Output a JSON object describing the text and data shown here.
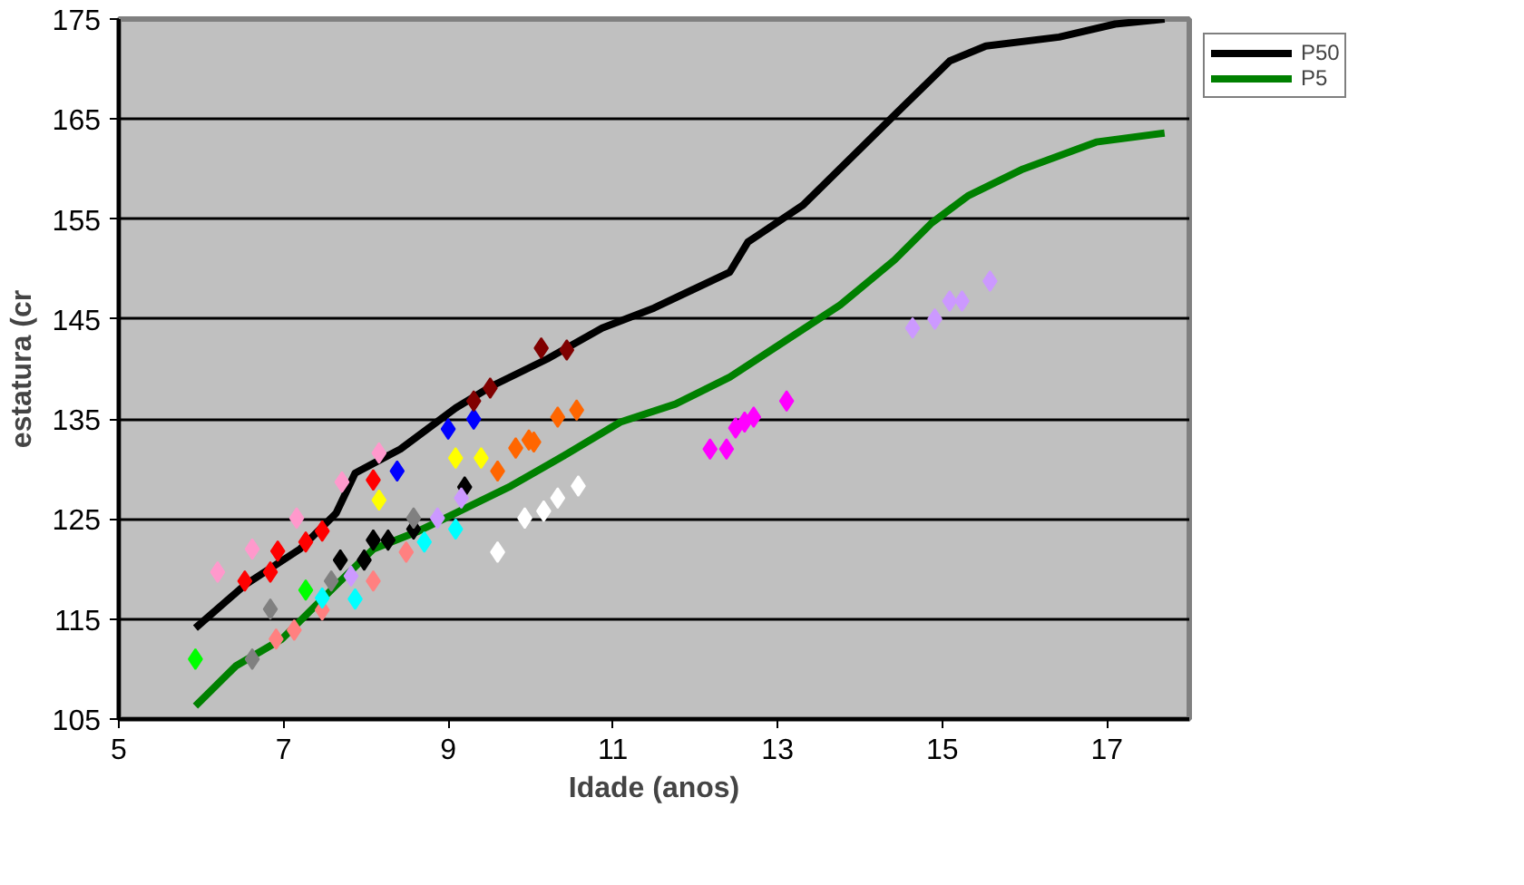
{
  "chart_data": {
    "type": "scatter",
    "xlabel": "Idade (anos)",
    "ylabel": "estatura (cr",
    "xlim": [
      5,
      18
    ],
    "xticks": [
      5,
      7,
      9,
      11,
      13,
      15,
      17
    ],
    "ylim": [
      105,
      175
    ],
    "yticks": [
      105,
      115,
      125,
      135,
      145,
      155,
      165,
      175
    ],
    "grid": "y",
    "legend": "top right",
    "marker": "diamond",
    "series": [
      {
        "name": "P50",
        "type": "line",
        "marker": "none",
        "color": "#000000",
        "x": [
          5.93,
          6.53,
          7.2,
          7.64,
          7.87,
          8.42,
          9.09,
          9.53,
          10.2,
          10.87,
          11.5,
          12.42,
          12.64,
          13.31,
          14.42,
          15.09,
          15.53,
          16.42,
          17.1,
          17.7
        ],
        "values": [
          114.1,
          118.4,
          122,
          125.6,
          129.6,
          132,
          136.1,
          138.3,
          141,
          144.1,
          146.1,
          149.7,
          152.7,
          156.4,
          165.4,
          170.8,
          172.3,
          173.2,
          174.5,
          175
        ]
      },
      {
        "name": "P5",
        "type": "line",
        "marker": "none",
        "color": "#008000",
        "x": [
          5.93,
          6.42,
          6.98,
          7.31,
          7.64,
          8.09,
          8.64,
          9.09,
          9.76,
          10.42,
          11.09,
          11.76,
          12.42,
          13.09,
          13.76,
          14.42,
          14.87,
          15.31,
          15.98,
          16.87,
          17.7
        ],
        "values": [
          106.3,
          110.3,
          113,
          115.7,
          118.4,
          122,
          123.8,
          125.6,
          128.3,
          131.4,
          134.7,
          136.5,
          139.2,
          142.8,
          146.4,
          150.9,
          154.6,
          157.3,
          160,
          162.7,
          163.6
        ]
      },
      {
        "color": "#ff99cc",
        "x": [
          6.2,
          6.62,
          7.16,
          7.71,
          8.16
        ],
        "values": [
          119.7,
          122,
          125.1,
          128.7,
          131.6
        ]
      },
      {
        "color": "#ff0000",
        "x": [
          6.53,
          6.84,
          6.93,
          7.27,
          7.47,
          8.09
        ],
        "values": [
          118.8,
          119.7,
          121.8,
          122.7,
          123.8,
          128.9
        ]
      },
      {
        "color": "#0000ff",
        "x": [
          8.38,
          9.0,
          9.31
        ],
        "values": [
          129.8,
          134,
          135
        ]
      },
      {
        "color": "#800000",
        "x": [
          9.31,
          9.51,
          10.13,
          10.44
        ],
        "values": [
          136.8,
          138.1,
          142.1,
          141.9
        ]
      },
      {
        "color": "#ffff00",
        "x": [
          8.16,
          9.09,
          9.4
        ],
        "values": [
          126.9,
          131.1,
          131.1
        ]
      },
      {
        "color": "#ff6600",
        "x": [
          9.6,
          9.82,
          9.98,
          10.04,
          10.33,
          10.56
        ],
        "values": [
          129.8,
          132.1,
          132.9,
          132.7,
          135.2,
          135.9
        ]
      },
      {
        "color": "#000000",
        "x": [
          7.69,
          7.98,
          8.09,
          8.27,
          8.58,
          9.2
        ],
        "values": [
          120.9,
          120.9,
          122.9,
          122.9,
          124,
          128.2
        ]
      },
      {
        "color": "#808080",
        "x": [
          6.62,
          6.84,
          7.58,
          8.58
        ],
        "values": [
          111,
          116,
          118.8,
          125.1
        ]
      },
      {
        "color": "#00ff00",
        "x": [
          5.93,
          7.27
        ],
        "values": [
          111,
          117.9
        ]
      },
      {
        "color": "#ff8080",
        "x": [
          6.91,
          7.13,
          7.47,
          8.09,
          8.49
        ],
        "values": [
          113,
          113.9,
          115.9,
          118.8,
          121.7
        ]
      },
      {
        "color": "#00ffff",
        "x": [
          7.47,
          7.87,
          8.71,
          9.09
        ],
        "values": [
          117.1,
          117,
          122.7,
          124
        ]
      },
      {
        "color": "#cc99ff",
        "x": [
          7.82,
          8.87,
          9.16,
          14.64,
          14.91,
          15.09,
          15.24,
          15.58
        ],
        "values": [
          119.3,
          125.1,
          127.1,
          144.1,
          145,
          146.8,
          146.8,
          148.8
        ]
      },
      {
        "color": "#ff00ff",
        "x": [
          12.18,
          12.38,
          12.49,
          12.6,
          12.71,
          13.11
        ],
        "values": [
          132,
          132,
          134.1,
          134.7,
          135.2,
          136.8
        ]
      },
      {
        "color": "#ffffff",
        "x": [
          9.6,
          9.93,
          10.16,
          10.33,
          10.58
        ],
        "values": [
          121.7,
          125.1,
          125.8,
          127.1,
          128.3
        ]
      }
    ]
  }
}
